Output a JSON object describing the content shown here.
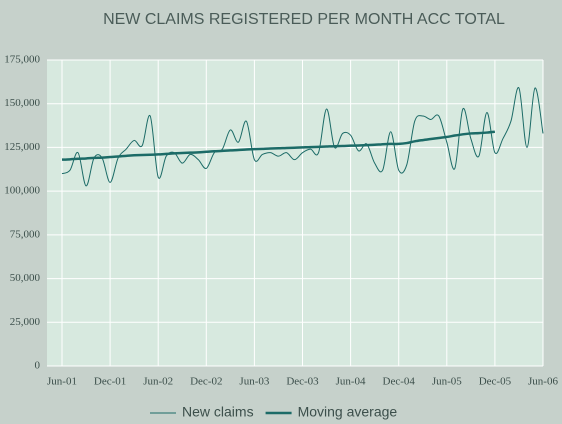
{
  "chart_data": {
    "type": "line",
    "title": "NEW CLAIMS REGISTERED PER MONTH ACC TOTAL",
    "categories": [
      "Jun-01",
      null,
      null,
      null,
      null,
      null,
      "Dec-01",
      null,
      null,
      null,
      null,
      null,
      "Jun-02",
      null,
      null,
      null,
      null,
      null,
      "Dec-02",
      null,
      null,
      null,
      null,
      null,
      "Jun-03",
      null,
      null,
      null,
      null,
      null,
      "Dec-03",
      null,
      null,
      null,
      null,
      null,
      "Jun-04",
      null,
      null,
      null,
      null,
      null,
      "Dec-04",
      null,
      null,
      null,
      null,
      null,
      "Jun-05",
      null,
      null,
      null,
      null,
      null,
      "Dec-05",
      null,
      null,
      null,
      null,
      null,
      "Jun-06"
    ],
    "series": [
      {
        "name": "New claims",
        "color": "#1c6b67",
        "line_width": 1,
        "values": [
          110000,
          112000,
          122000,
          103000,
          119000,
          119000,
          105000,
          119000,
          124000,
          129000,
          126000,
          143000,
          108000,
          120000,
          122000,
          116000,
          121000,
          118000,
          113000,
          122000,
          124000,
          135000,
          128000,
          140000,
          118000,
          121000,
          122000,
          120000,
          122000,
          118000,
          122000,
          124000,
          122000,
          147000,
          125000,
          133000,
          132000,
          123000,
          127000,
          116000,
          112000,
          134000,
          112000,
          115000,
          140000,
          143000,
          141000,
          143000,
          128000,
          113000,
          147000,
          130000,
          120000,
          145000,
          122000,
          130000,
          140000,
          159000,
          125000,
          159000,
          133000
        ]
      },
      {
        "name": "Moving average",
        "color": "#1c6b67",
        "line_width": 2.5,
        "values": [
          118000,
          118200,
          118500,
          118700,
          119000,
          119200,
          119500,
          119800,
          120200,
          120500,
          120700,
          120800,
          121000,
          121300,
          121600,
          121800,
          122000,
          122200,
          122500,
          122800,
          123000,
          123300,
          123500,
          123800,
          124000,
          124200,
          124400,
          124500,
          124700,
          124800,
          125000,
          125200,
          125300,
          125500,
          125700,
          125800,
          126000,
          126100,
          126300,
          126500,
          126800,
          127000,
          127000,
          127500,
          128500,
          129200,
          129800,
          130400,
          131000,
          131800,
          132500,
          133000,
          133200,
          133500,
          134000,
          null,
          null,
          null,
          null,
          null,
          null
        ]
      }
    ],
    "ylim": [
      0,
      175000
    ],
    "yticks": [
      0,
      {
        "value": 25000,
        "label": "25,000"
      },
      {
        "value": 50000,
        "label": "50,000"
      },
      {
        "value": 75000,
        "label": "75,000"
      },
      {
        "value": 100000,
        "label": "100,000"
      },
      {
        "value": 125000,
        "label": "125,000"
      },
      {
        "value": 150000,
        "label": "150,000"
      },
      {
        "value": 175000,
        "label": "175,000"
      }
    ],
    "grid": true,
    "legend": "bottom"
  }
}
